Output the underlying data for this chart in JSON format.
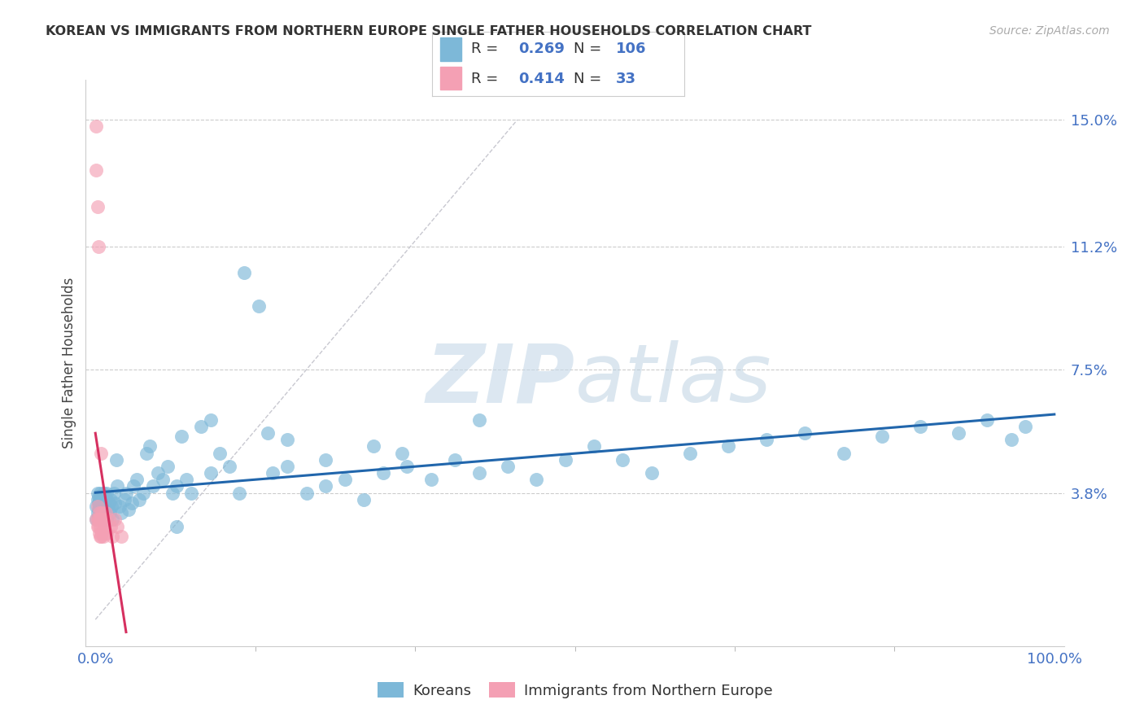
{
  "title": "KOREAN VS IMMIGRANTS FROM NORTHERN EUROPE SINGLE FATHER HOUSEHOLDS CORRELATION CHART",
  "source": "Source: ZipAtlas.com",
  "ylabel": "Single Father Households",
  "ytick_labels": [
    "3.8%",
    "7.5%",
    "11.2%",
    "15.0%"
  ],
  "ytick_values": [
    0.038,
    0.075,
    0.112,
    0.15
  ],
  "xtick_labels": [
    "0.0%",
    "100.0%"
  ],
  "xtick_values": [
    0.0,
    1.0
  ],
  "legend1_label": "Koreans",
  "legend2_label": "Immigrants from Northern Europe",
  "blue_color": "#7db8d8",
  "pink_color": "#f4a0b4",
  "blue_line_color": "#2166ac",
  "pink_line_color": "#d63060",
  "R_blue": 0.269,
  "N_blue": 106,
  "R_pink": 0.414,
  "N_pink": 33,
  "blue_points_x": [
    0.001,
    0.001,
    0.002,
    0.002,
    0.002,
    0.003,
    0.003,
    0.003,
    0.003,
    0.004,
    0.004,
    0.004,
    0.005,
    0.005,
    0.005,
    0.006,
    0.006,
    0.006,
    0.007,
    0.007,
    0.007,
    0.008,
    0.008,
    0.008,
    0.009,
    0.009,
    0.01,
    0.01,
    0.011,
    0.011,
    0.012,
    0.012,
    0.013,
    0.014,
    0.015,
    0.016,
    0.017,
    0.018,
    0.019,
    0.02,
    0.022,
    0.023,
    0.025,
    0.027,
    0.03,
    0.032,
    0.035,
    0.038,
    0.04,
    0.043,
    0.046,
    0.05,
    0.053,
    0.057,
    0.06,
    0.065,
    0.07,
    0.075,
    0.08,
    0.085,
    0.09,
    0.095,
    0.1,
    0.11,
    0.12,
    0.13,
    0.14,
    0.155,
    0.17,
    0.185,
    0.2,
    0.22,
    0.24,
    0.26,
    0.28,
    0.3,
    0.325,
    0.35,
    0.375,
    0.4,
    0.43,
    0.46,
    0.49,
    0.52,
    0.55,
    0.58,
    0.62,
    0.66,
    0.7,
    0.74,
    0.78,
    0.82,
    0.86,
    0.9,
    0.93,
    0.955,
    0.97,
    0.32,
    0.18,
    0.24,
    0.29,
    0.4,
    0.15,
    0.12,
    0.2,
    0.085
  ],
  "blue_points_y": [
    0.034,
    0.03,
    0.036,
    0.032,
    0.038,
    0.031,
    0.035,
    0.033,
    0.037,
    0.032,
    0.036,
    0.034,
    0.03,
    0.038,
    0.033,
    0.035,
    0.031,
    0.037,
    0.034,
    0.032,
    0.036,
    0.03,
    0.038,
    0.033,
    0.035,
    0.031,
    0.037,
    0.034,
    0.032,
    0.036,
    0.03,
    0.038,
    0.033,
    0.035,
    0.032,
    0.036,
    0.034,
    0.03,
    0.038,
    0.035,
    0.048,
    0.04,
    0.034,
    0.032,
    0.036,
    0.038,
    0.033,
    0.035,
    0.04,
    0.042,
    0.036,
    0.038,
    0.05,
    0.052,
    0.04,
    0.044,
    0.042,
    0.046,
    0.038,
    0.04,
    0.055,
    0.042,
    0.038,
    0.058,
    0.06,
    0.05,
    0.046,
    0.104,
    0.094,
    0.044,
    0.046,
    0.038,
    0.04,
    0.042,
    0.036,
    0.044,
    0.046,
    0.042,
    0.048,
    0.044,
    0.046,
    0.042,
    0.048,
    0.052,
    0.048,
    0.044,
    0.05,
    0.052,
    0.054,
    0.056,
    0.05,
    0.055,
    0.058,
    0.056,
    0.06,
    0.054,
    0.058,
    0.05,
    0.056,
    0.048,
    0.052,
    0.06,
    0.038,
    0.044,
    0.054,
    0.028
  ],
  "pink_points_x": [
    0.001,
    0.001,
    0.001,
    0.002,
    0.002,
    0.002,
    0.002,
    0.003,
    0.003,
    0.003,
    0.004,
    0.004,
    0.004,
    0.005,
    0.005,
    0.005,
    0.006,
    0.006,
    0.006,
    0.007,
    0.007,
    0.008,
    0.008,
    0.009,
    0.01,
    0.011,
    0.012,
    0.014,
    0.016,
    0.018,
    0.02,
    0.023,
    0.027
  ],
  "pink_points_y": [
    0.148,
    0.135,
    0.03,
    0.124,
    0.03,
    0.034,
    0.028,
    0.112,
    0.03,
    0.028,
    0.03,
    0.032,
    0.026,
    0.03,
    0.028,
    0.025,
    0.05,
    0.03,
    0.025,
    0.032,
    0.026,
    0.03,
    0.025,
    0.028,
    0.03,
    0.032,
    0.026,
    0.03,
    0.028,
    0.025,
    0.03,
    0.028,
    0.025
  ]
}
